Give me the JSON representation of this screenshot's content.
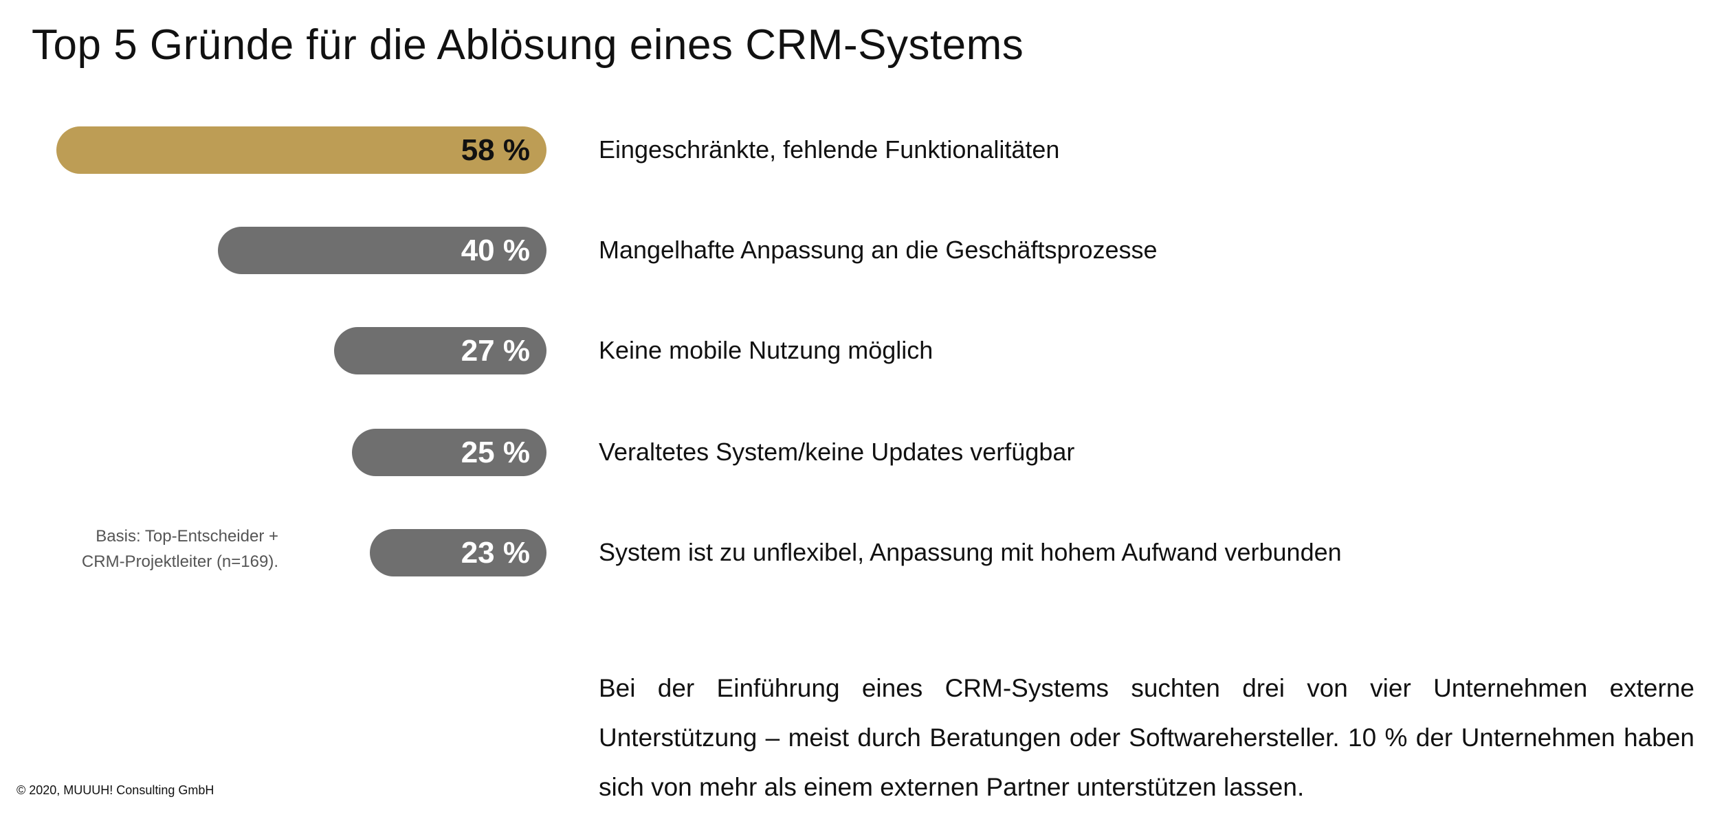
{
  "title": "Top 5 Gründe für die Ablösung eines CRM-Systems",
  "chart_data": {
    "type": "bar",
    "orientation": "horizontal",
    "title": "Top 5 Gründe für die Ablösung eines CRM-Systems",
    "categories": [
      "Eingeschränkte, fehlende Funktionalitäten",
      "Mangelhafte Anpassung an die Geschäftsprozesse",
      "Keine mobile Nutzung möglich",
      "Veraltetes System/keine Updates verfügbar",
      "System ist zu unflexibel, Anpassung mit hohem Aufwand verbunden"
    ],
    "values": [
      58,
      40,
      27,
      25,
      23
    ],
    "value_labels": [
      "58 %",
      "40 %",
      "27 %",
      "25 %",
      "23 %"
    ],
    "unit": "%",
    "colors": [
      "#bd9d55",
      "#6f6f6f",
      "#6f6f6f",
      "#6f6f6f",
      "#6f6f6f"
    ],
    "label_text_colors": [
      "#111111",
      "#ffffff",
      "#ffffff",
      "#ffffff",
      "#ffffff"
    ],
    "xlabel": "",
    "ylabel": "",
    "grid": false
  },
  "basis": [
    "Basis: Top-Entscheider +",
    "CRM-Projektleiter  (n=169)."
  ],
  "note": "Bei der Einführung eines CRM-Systems suchten drei von vier Unternehmen externe Unterstützung – meist durch Beratungen oder Softwarehersteller. 10 % der Unternehmen haben sich von mehr als einem externen Partner unterstützen lassen.",
  "copyright": "© 2020, MUUUH! Consulting GmbH"
}
